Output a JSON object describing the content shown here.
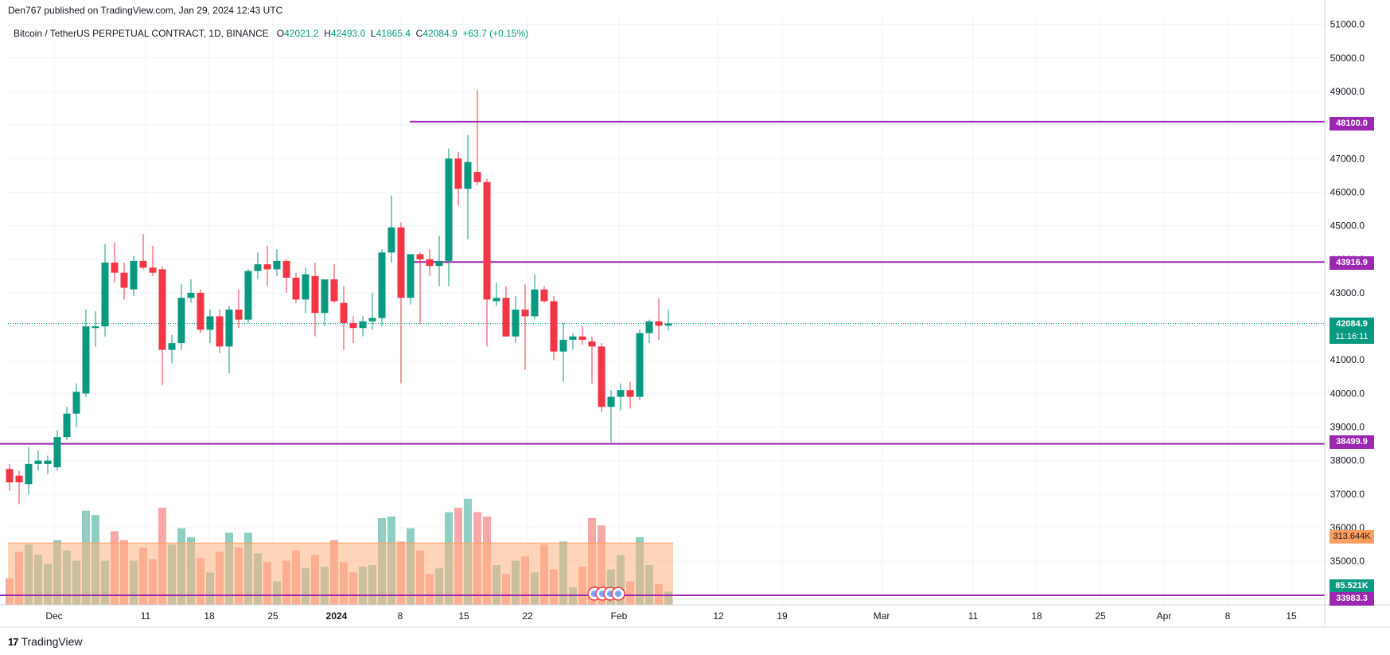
{
  "header": {
    "published": "Den767 published on TradingView.com, Jan 29, 2024 12:43 UTC"
  },
  "legend": {
    "symbol": "Bitcoin / TetherUS PERPETUAL CONTRACT, 1D, BINANCE",
    "open_label": "O",
    "open": "42021.2",
    "high_label": "H",
    "high": "42493.0",
    "low_label": "L",
    "low": "41865.4",
    "close_label": "C",
    "close": "42084.9",
    "change": "+63.7 (+0.15%)"
  },
  "footer": {
    "brand": "TradingView",
    "logo": "17"
  },
  "price_labels": {
    "level_48100": "48100.0",
    "level_43916": "43916.9",
    "last_price": "42084.9",
    "countdown": "11:16:11",
    "level_38499": "38499.9",
    "volume_ma": "313.644K",
    "volume": "85.521K",
    "level_33983": "33983.3"
  },
  "colors": {
    "up": "#089981",
    "down": "#f23645",
    "level": "#9c27b0",
    "vol_up": "#8fcfc3",
    "vol_down": "#f7a9a7",
    "vol_ma_fill": "#ffb27f",
    "vol_ma_label": "#ff9e5e"
  },
  "chart_data": {
    "type": "candlestick",
    "title": "Bitcoin / TetherUS PERPETUAL CONTRACT, 1D, BINANCE",
    "y_axis_ticks": [
      "51000.0",
      "50000.0",
      "49000.0",
      "48000.0",
      "47000.0",
      "46000.0",
      "45000.0",
      "44000.0",
      "43000.0",
      "42000.0",
      "41000.0",
      "40000.0",
      "39000.0",
      "38000.0",
      "37000.0",
      "36000.0",
      "35000.0"
    ],
    "y_range": [
      33700,
      51300
    ],
    "x_axis_ticks": [
      "Dec",
      "11",
      "18",
      "25",
      "2024",
      "8",
      "15",
      "22",
      "Feb",
      "12",
      "19",
      "Mar",
      "11",
      "18",
      "25",
      "Apr",
      "8",
      "15"
    ],
    "horizontal_levels": [
      48100.0,
      43916.9,
      38499.9,
      33983.3
    ],
    "last_price": 42084.9,
    "candles": [
      {
        "o": 37750,
        "h": 37900,
        "l": 37100,
        "c": 37350
      },
      {
        "o": 37550,
        "h": 37700,
        "l": 36700,
        "c": 37350
      },
      {
        "o": 37300,
        "h": 38400,
        "l": 37000,
        "c": 37900
      },
      {
        "o": 37900,
        "h": 38300,
        "l": 37700,
        "c": 38000
      },
      {
        "o": 37900,
        "h": 38150,
        "l": 37600,
        "c": 38000
      },
      {
        "o": 37800,
        "h": 38900,
        "l": 37700,
        "c": 38700
      },
      {
        "o": 38700,
        "h": 39600,
        "l": 38600,
        "c": 39400
      },
      {
        "o": 39400,
        "h": 40300,
        "l": 39000,
        "c": 40050
      },
      {
        "o": 40000,
        "h": 42500,
        "l": 39900,
        "c": 42000
      },
      {
        "o": 41950,
        "h": 42450,
        "l": 41400,
        "c": 42000
      },
      {
        "o": 42000,
        "h": 44450,
        "l": 41700,
        "c": 43900
      },
      {
        "o": 43900,
        "h": 44500,
        "l": 43300,
        "c": 43600
      },
      {
        "o": 43600,
        "h": 43900,
        "l": 42800,
        "c": 43150
      },
      {
        "o": 43100,
        "h": 44100,
        "l": 42900,
        "c": 43950
      },
      {
        "o": 43950,
        "h": 44750,
        "l": 43700,
        "c": 43750
      },
      {
        "o": 43750,
        "h": 44400,
        "l": 43500,
        "c": 43600
      },
      {
        "o": 43700,
        "h": 43800,
        "l": 40250,
        "c": 41300
      },
      {
        "o": 41300,
        "h": 41750,
        "l": 40900,
        "c": 41500
      },
      {
        "o": 41500,
        "h": 43250,
        "l": 41300,
        "c": 42850
      },
      {
        "o": 42850,
        "h": 43400,
        "l": 42700,
        "c": 43000
      },
      {
        "o": 43000,
        "h": 43100,
        "l": 41800,
        "c": 41900
      },
      {
        "o": 41900,
        "h": 42500,
        "l": 41500,
        "c": 42300
      },
      {
        "o": 42300,
        "h": 42500,
        "l": 41200,
        "c": 41400
      },
      {
        "o": 41400,
        "h": 42600,
        "l": 40600,
        "c": 42500
      },
      {
        "o": 42500,
        "h": 43100,
        "l": 41950,
        "c": 42200
      },
      {
        "o": 42200,
        "h": 43700,
        "l": 42100,
        "c": 43650
      },
      {
        "o": 43650,
        "h": 44200,
        "l": 43400,
        "c": 43850
      },
      {
        "o": 43850,
        "h": 44400,
        "l": 43200,
        "c": 43700
      },
      {
        "o": 43700,
        "h": 44300,
        "l": 43500,
        "c": 43950
      },
      {
        "o": 43950,
        "h": 44000,
        "l": 43000,
        "c": 43450
      },
      {
        "o": 43450,
        "h": 43600,
        "l": 42700,
        "c": 42800
      },
      {
        "o": 42800,
        "h": 43750,
        "l": 42400,
        "c": 43550
      },
      {
        "o": 43500,
        "h": 43900,
        "l": 41700,
        "c": 42400
      },
      {
        "o": 42400,
        "h": 43300,
        "l": 42000,
        "c": 43400
      },
      {
        "o": 43400,
        "h": 43850,
        "l": 42700,
        "c": 42750
      },
      {
        "o": 42700,
        "h": 43200,
        "l": 41300,
        "c": 42100
      },
      {
        "o": 42100,
        "h": 42300,
        "l": 41500,
        "c": 41950
      },
      {
        "o": 41950,
        "h": 42300,
        "l": 41700,
        "c": 42150
      },
      {
        "o": 42150,
        "h": 43000,
        "l": 41900,
        "c": 42250
      },
      {
        "o": 42250,
        "h": 44300,
        "l": 42000,
        "c": 44200
      },
      {
        "o": 44200,
        "h": 45900,
        "l": 43900,
        "c": 44950
      },
      {
        "o": 44950,
        "h": 45100,
        "l": 40300,
        "c": 42850
      },
      {
        "o": 42850,
        "h": 44100,
        "l": 42650,
        "c": 44150
      },
      {
        "o": 44150,
        "h": 44200,
        "l": 42050,
        "c": 44000
      },
      {
        "o": 44000,
        "h": 44300,
        "l": 43500,
        "c": 43800
      },
      {
        "o": 43800,
        "h": 44700,
        "l": 43200,
        "c": 43950
      },
      {
        "o": 43950,
        "h": 47300,
        "l": 43200,
        "c": 47000
      },
      {
        "o": 47000,
        "h": 47200,
        "l": 45600,
        "c": 46100
      },
      {
        "o": 46100,
        "h": 47700,
        "l": 44600,
        "c": 46900
      },
      {
        "o": 46600,
        "h": 49050,
        "l": 46200,
        "c": 46300
      },
      {
        "o": 46300,
        "h": 46400,
        "l": 41400,
        "c": 42800
      },
      {
        "o": 42750,
        "h": 43300,
        "l": 42600,
        "c": 42850
      },
      {
        "o": 42850,
        "h": 43200,
        "l": 41700,
        "c": 41700
      },
      {
        "o": 41700,
        "h": 42900,
        "l": 41500,
        "c": 42500
      },
      {
        "o": 42500,
        "h": 43250,
        "l": 40700,
        "c": 42300
      },
      {
        "o": 42300,
        "h": 43550,
        "l": 42200,
        "c": 43100
      },
      {
        "o": 43100,
        "h": 43200,
        "l": 42700,
        "c": 42750
      },
      {
        "o": 42750,
        "h": 42900,
        "l": 41000,
        "c": 41250
      },
      {
        "o": 41250,
        "h": 42100,
        "l": 40350,
        "c": 41600
      },
      {
        "o": 41600,
        "h": 41800,
        "l": 41300,
        "c": 41700
      },
      {
        "o": 41700,
        "h": 42000,
        "l": 41450,
        "c": 41600
      },
      {
        "o": 41550,
        "h": 41700,
        "l": 40300,
        "c": 41400
      },
      {
        "o": 41400,
        "h": 41500,
        "l": 39450,
        "c": 39600
      },
      {
        "o": 39600,
        "h": 40100,
        "l": 38550,
        "c": 39900
      },
      {
        "o": 39900,
        "h": 40300,
        "l": 39500,
        "c": 40100
      },
      {
        "o": 40100,
        "h": 40350,
        "l": 39550,
        "c": 39900
      },
      {
        "o": 39900,
        "h": 41900,
        "l": 39800,
        "c": 41800
      },
      {
        "o": 41800,
        "h": 42200,
        "l": 41500,
        "c": 42150
      },
      {
        "o": 42150,
        "h": 42850,
        "l": 41600,
        "c": 42021
      },
      {
        "o": 42021.2,
        "h": 42493,
        "l": 41865.4,
        "c": 42084.9
      }
    ],
    "volume_scale": 3.4,
    "volume_ma_level": 2.1,
    "volume": [
      0.9,
      1.8,
      2.05,
      1.7,
      1.4,
      2.2,
      1.85,
      1.5,
      3.2,
      3.05,
      1.5,
      2.5,
      2.2,
      1.5,
      1.95,
      1.55,
      3.3,
      2.05,
      2.6,
      2.3,
      1.6,
      1.1,
      1.8,
      2.45,
      1.95,
      2.45,
      1.75,
      1.45,
      0.8,
      1.5,
      1.85,
      1.25,
      1.7,
      1.3,
      2.2,
      1.45,
      1.1,
      1.3,
      1.35,
      2.95,
      3.0,
      2.15,
      2.6,
      1.85,
      1.05,
      1.25,
      3.15,
      3.3,
      3.6,
      3.15,
      3.0,
      1.35,
      1.05,
      1.5,
      1.65,
      1.1,
      2.05,
      1.2,
      2.15,
      0.6,
      1.3,
      2.95,
      2.7,
      1.2,
      1.7,
      0.8,
      2.3,
      1.35,
      0.7,
      0.45
    ]
  }
}
